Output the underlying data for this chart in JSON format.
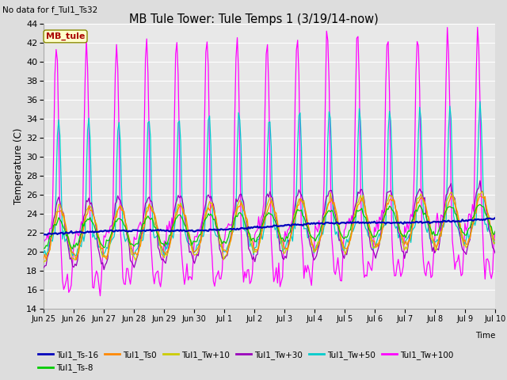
{
  "title": "MB Tule Tower: Tule Temps 1 (3/19/14-now)",
  "no_data_text": "No data for f_Tul1_Ts32",
  "ylabel": "Temperature (C)",
  "xlabel_time": "Time",
  "ylim": [
    14,
    44
  ],
  "yticks": [
    14,
    16,
    18,
    20,
    22,
    24,
    26,
    28,
    30,
    32,
    34,
    36,
    38,
    40,
    42,
    44
  ],
  "xtick_labels": [
    "Jun 25",
    "Jun 26",
    "Jun 27",
    "Jun 28",
    "Jun 29",
    "Jun 30",
    "Jul 1",
    "Jul 2",
    "Jul 3",
    "Jul 4",
    "Jul 5",
    "Jul 6",
    "Jul 7",
    "Jul 8",
    "Jul 9",
    "Jul 10"
  ],
  "legend_entries": [
    "Tul1_Ts-16",
    "Tul1_Ts-8",
    "Tul1_Ts0",
    "Tul1_Tw+10",
    "Tul1_Tw+30",
    "Tul1_Tw+50",
    "Tul1_Tw+100"
  ],
  "line_colors": [
    "#0000bb",
    "#00cc00",
    "#ff8800",
    "#cccc00",
    "#9900bb",
    "#00cccc",
    "#ff00ff"
  ],
  "bg_color": "#dddddd",
  "plot_bg_color": "#e8e8e8",
  "annotation_text": "MB_tule",
  "annotation_color": "#aa0000",
  "annotation_bg": "#ffffcc",
  "annotation_edge": "#888800"
}
